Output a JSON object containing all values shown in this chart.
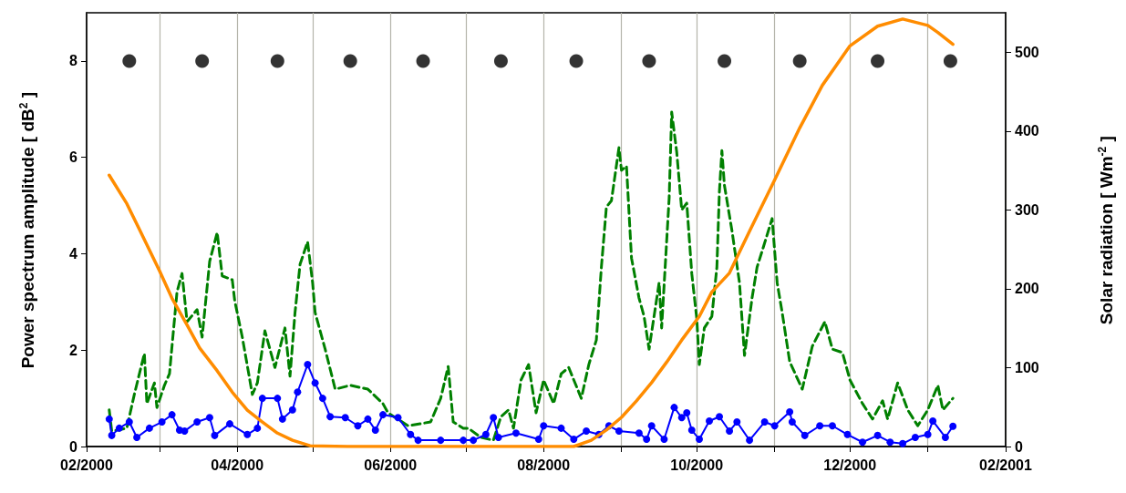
{
  "chart_data": {
    "type": "line",
    "ylabel": "Power spectrum amplitude [ dB$^{2}$ ]",
    "y2label": "Solar radiation [ Wm$^{-2}$ ]",
    "xlim": [
      "2000-02-01",
      "2001-02-01"
    ],
    "xticks": [
      {
        "value": "2000-02-01",
        "label": "02/2000"
      },
      {
        "value": "2000-03-01",
        "label": null
      },
      {
        "value": "2000-04-01",
        "label": "04/2000"
      },
      {
        "value": "2000-05-01",
        "label": null
      },
      {
        "value": "2000-06-01",
        "label": "06/2000"
      },
      {
        "value": "2000-07-01",
        "label": null
      },
      {
        "value": "2000-08-01",
        "label": "08/2000"
      },
      {
        "value": "2000-09-01",
        "label": null
      },
      {
        "value": "2000-10-01",
        "label": "10/2000"
      },
      {
        "value": "2000-11-01",
        "label": null
      },
      {
        "value": "2000-12-01",
        "label": "12/2000"
      },
      {
        "value": "2001-01-01",
        "label": null
      },
      {
        "value": "2001-02-01",
        "label": "02/2001"
      }
    ],
    "ylim": [
      0,
      9
    ],
    "yticks": [
      0,
      2,
      4,
      6,
      8
    ],
    "y2lim": [
      0,
      550
    ],
    "y2ticks": [
      0,
      100,
      200,
      300,
      400,
      500
    ],
    "grid": "x",
    "series": [
      {
        "color": "#008000",
        "line_style": "dashed",
        "marker": "none",
        "x": [
          "2000-02-10",
          "2000-02-11",
          "2000-02-17",
          "2000-02-20",
          "2000-02-24",
          "2000-02-25",
          "2000-02-28",
          "2000-02-29",
          "2000-03-03",
          "2000-03-05",
          "2000-03-08",
          "2000-03-10",
          "2000-03-12",
          "2000-03-16",
          "2000-03-18",
          "2000-03-21",
          "2000-03-24",
          "2000-03-26",
          "2000-03-30",
          "2000-03-31",
          "2000-04-03",
          "2000-04-07",
          "2000-04-09",
          "2000-04-12",
          "2000-04-15",
          "2000-04-16",
          "2000-04-20",
          "2000-04-22",
          "2000-04-24",
          "2000-04-26",
          "2000-04-29",
          "2000-05-01",
          "2000-05-02",
          "2000-05-06",
          "2000-05-10",
          "2000-05-16",
          "2000-05-23",
          "2000-05-29",
          "2000-05-31",
          "2000-06-08",
          "2000-06-17",
          "2000-06-21",
          "2000-06-24",
          "2000-06-26",
          "2000-06-30",
          "2000-07-02",
          "2000-07-07",
          "2000-07-12",
          "2000-07-15",
          "2000-07-18",
          "2000-07-20",
          "2000-07-23",
          "2000-07-26",
          "2000-07-29",
          "2000-08-01",
          "2000-08-05",
          "2000-08-08",
          "2000-08-11",
          "2000-08-16",
          "2000-08-19",
          "2000-08-22",
          "2000-08-24",
          "2000-08-26",
          "2000-08-28",
          "2000-08-31",
          "2000-09-01",
          "2000-09-03",
          "2000-09-05",
          "2000-09-08",
          "2000-09-10",
          "2000-09-12",
          "2000-09-16",
          "2000-09-17",
          "2000-09-20",
          "2000-09-21",
          "2000-09-23",
          "2000-09-25",
          "2000-09-27",
          "2000-09-29",
          "2000-10-01",
          "2000-10-02",
          "2000-10-04",
          "2000-10-07",
          "2000-10-09",
          "2000-10-10",
          "2000-10-11",
          "2000-10-12",
          "2000-10-15",
          "2000-10-18",
          "2000-10-20",
          "2000-10-23",
          "2000-10-25",
          "2000-10-28",
          "2000-10-31",
          "2000-11-02",
          "2000-11-04",
          "2000-11-07",
          "2000-11-12",
          "2000-11-16",
          "2000-11-21",
          "2000-11-24",
          "2000-11-28",
          "2000-12-01",
          "2000-12-06",
          "2000-12-10",
          "2000-12-14",
          "2000-12-16",
          "2000-12-20",
          "2000-12-24",
          "2000-12-28",
          "2001-01-01",
          "2001-01-05",
          "2001-01-07",
          "2001-01-11"
        ],
        "values": [
          0.76,
          0.32,
          0.38,
          1.08,
          1.93,
          0.89,
          1.32,
          0.81,
          1.27,
          1.51,
          3.21,
          3.59,
          2.59,
          2.84,
          2.27,
          3.84,
          4.44,
          3.54,
          3.46,
          3.02,
          2.27,
          1.08,
          1.32,
          2.4,
          1.83,
          1.64,
          2.46,
          1.46,
          2.78,
          3.78,
          4.25,
          3.4,
          2.78,
          2.02,
          1.19,
          1.27,
          1.19,
          0.89,
          0.7,
          0.43,
          0.51,
          1.0,
          1.66,
          0.51,
          0.38,
          0.38,
          0.19,
          0.13,
          0.62,
          0.76,
          0.38,
          1.38,
          1.7,
          0.7,
          1.38,
          0.89,
          1.51,
          1.64,
          1.0,
          1.7,
          2.21,
          3.72,
          4.97,
          5.1,
          6.2,
          5.73,
          5.82,
          3.91,
          3.08,
          2.7,
          2.02,
          3.4,
          2.46,
          5.16,
          6.94,
          6.11,
          4.91,
          5.05,
          3.59,
          2.65,
          1.7,
          2.46,
          2.7,
          3.72,
          5.29,
          6.14,
          5.42,
          4.48,
          3.4,
          1.89,
          3.08,
          3.72,
          4.22,
          4.73,
          3.4,
          2.78,
          1.76,
          1.19,
          2.08,
          2.59,
          2.02,
          1.95,
          1.38,
          0.89,
          0.57,
          0.95,
          0.57,
          1.32,
          0.76,
          0.43,
          0.76,
          1.27,
          0.76,
          1.0
        ]
      },
      {
        "color": "#0000ff",
        "line_style": "solid",
        "marker": "circle",
        "x": [
          "2000-02-10",
          "2000-02-11",
          "2000-02-14",
          "2000-02-18",
          "2000-02-21",
          "2000-02-26",
          "2000-03-02",
          "2000-03-06",
          "2000-03-09",
          "2000-03-11",
          "2000-03-16",
          "2000-03-21",
          "2000-03-23",
          "2000-03-29",
          "2000-04-05",
          "2000-04-09",
          "2000-04-11",
          "2000-04-17",
          "2000-04-19",
          "2000-04-23",
          "2000-04-25",
          "2000-04-29",
          "2000-05-02",
          "2000-05-05",
          "2000-05-08",
          "2000-05-14",
          "2000-05-19",
          "2000-05-23",
          "2000-05-26",
          "2000-05-29",
          "2000-06-04",
          "2000-06-09",
          "2000-06-12",
          "2000-06-21",
          "2000-06-30",
          "2000-07-04",
          "2000-07-09",
          "2000-07-12",
          "2000-07-14",
          "2000-07-21",
          "2000-07-30",
          "2000-08-01",
          "2000-08-08",
          "2000-08-13",
          "2000-08-18",
          "2000-08-23",
          "2000-08-27",
          "2000-08-31",
          "2000-09-08",
          "2000-09-11",
          "2000-09-13",
          "2000-09-18",
          "2000-09-22",
          "2000-09-25",
          "2000-09-27",
          "2000-09-29",
          "2000-10-02",
          "2000-10-06",
          "2000-10-10",
          "2000-10-14",
          "2000-10-17",
          "2000-10-22",
          "2000-10-28",
          "2000-11-01",
          "2000-11-07",
          "2000-11-08",
          "2000-11-13",
          "2000-11-19",
          "2000-11-24",
          "2000-11-30",
          "2000-12-06",
          "2000-12-12",
          "2000-12-17",
          "2000-12-22",
          "2000-12-27",
          "2001-01-01",
          "2001-01-03",
          "2001-01-08",
          "2001-01-11"
        ],
        "values": [
          0.57,
          0.23,
          0.38,
          0.51,
          0.19,
          0.38,
          0.51,
          0.66,
          0.34,
          0.32,
          0.51,
          0.6,
          0.23,
          0.47,
          0.25,
          0.38,
          1.0,
          1.0,
          0.57,
          0.76,
          1.13,
          1.7,
          1.32,
          1.0,
          0.62,
          0.6,
          0.43,
          0.57,
          0.34,
          0.66,
          0.6,
          0.25,
          0.13,
          0.13,
          0.13,
          0.13,
          0.25,
          0.6,
          0.19,
          0.28,
          0.15,
          0.43,
          0.38,
          0.15,
          0.32,
          0.25,
          0.43,
          0.32,
          0.28,
          0.15,
          0.43,
          0.15,
          0.81,
          0.6,
          0.7,
          0.34,
          0.15,
          0.53,
          0.62,
          0.32,
          0.51,
          0.13,
          0.51,
          0.43,
          0.72,
          0.51,
          0.23,
          0.43,
          0.43,
          0.25,
          0.09,
          0.23,
          0.09,
          0.06,
          0.19,
          0.25,
          0.53,
          0.19,
          0.42
        ]
      },
      {
        "color": "#ff8c00",
        "line_style": "solid",
        "marker": "none",
        "axis": "y2",
        "x": [
          "2000-02-10",
          "2000-02-17",
          "2000-02-23",
          "2000-03-01",
          "2000-03-06",
          "2000-03-12",
          "2000-03-17",
          "2000-03-24",
          "2000-03-30",
          "2000-04-05",
          "2000-04-11",
          "2000-04-17",
          "2000-04-23",
          "2000-04-30",
          "2000-05-15",
          "2000-06-15",
          "2000-07-15",
          "2000-08-13",
          "2000-08-20",
          "2000-08-26",
          "2000-09-01",
          "2000-09-07",
          "2000-09-13",
          "2000-09-19",
          "2000-09-25",
          "2000-10-02",
          "2000-10-07",
          "2000-10-14",
          "2000-10-22",
          "2000-11-01",
          "2000-11-11",
          "2000-11-20",
          "2000-12-01",
          "2000-12-12",
          "2000-12-22",
          "2001-01-01",
          "2001-01-05",
          "2001-01-11"
        ],
        "values": [
          344,
          308,
          269,
          223,
          188,
          154,
          125,
          96,
          69,
          46,
          31,
          17,
          8,
          1,
          0,
          0,
          0,
          0,
          8,
          21,
          37,
          58,
          81,
          107,
          135,
          165,
          196,
          220,
          273,
          338,
          404,
          458,
          508,
          533,
          542,
          534,
          525,
          510
        ]
      },
      {
        "type": "scatter",
        "color": "#000000",
        "marker": "circle",
        "x": [
          "2000-02-18",
          "2000-03-18",
          "2000-04-17",
          "2000-05-16",
          "2000-06-14",
          "2000-07-15",
          "2000-08-14",
          "2000-09-12",
          "2000-10-12",
          "2000-11-11",
          "2000-12-12",
          "2001-01-10"
        ],
        "values": [
          8,
          8,
          8,
          8,
          8,
          8,
          8,
          8,
          8,
          8,
          8,
          8
        ]
      }
    ]
  }
}
